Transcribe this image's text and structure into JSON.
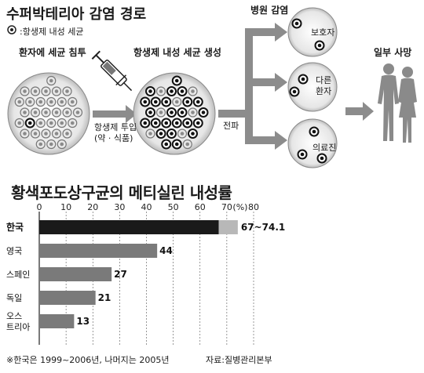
{
  "diagram": {
    "title": "수퍼박테리아 감염 경로",
    "legend_label": ":항생제 내성 세균",
    "stage1_label": "환자에 세균 침투",
    "stage2_label": "항생제 내성 세균 생성",
    "syringe_label_1": "항생제 투입",
    "syringe_label_2": "(약 · 식품)",
    "spread_label": "전파",
    "hospital_label": "병원 감염",
    "targets": [
      "보호자",
      "다른\n환자",
      "의료진"
    ],
    "death_label": "일부 사망"
  },
  "chart_data": {
    "type": "bar",
    "title": "황색포도상구균의 메티실린 내성률",
    "xlim": [
      0,
      80
    ],
    "xticks": [
      0,
      10,
      20,
      30,
      40,
      50,
      60,
      70,
      80
    ],
    "unit_label": "(%)",
    "categories": [
      "한국",
      "영국",
      "스페인",
      "독일",
      "오스\n트리아"
    ],
    "values": [
      67,
      44,
      27,
      21,
      13
    ],
    "range_high": 74.1,
    "value_labels": [
      "67~74.1",
      "44",
      "27",
      "21",
      "13"
    ],
    "highlight_color": "#1a1a1a",
    "bar_color": "#7a7a7a",
    "range_color": "#b8b8b8",
    "footnote": "※한국은 1999~2006년, 나머지는 2005년",
    "source": "자료:질병관리본부"
  }
}
